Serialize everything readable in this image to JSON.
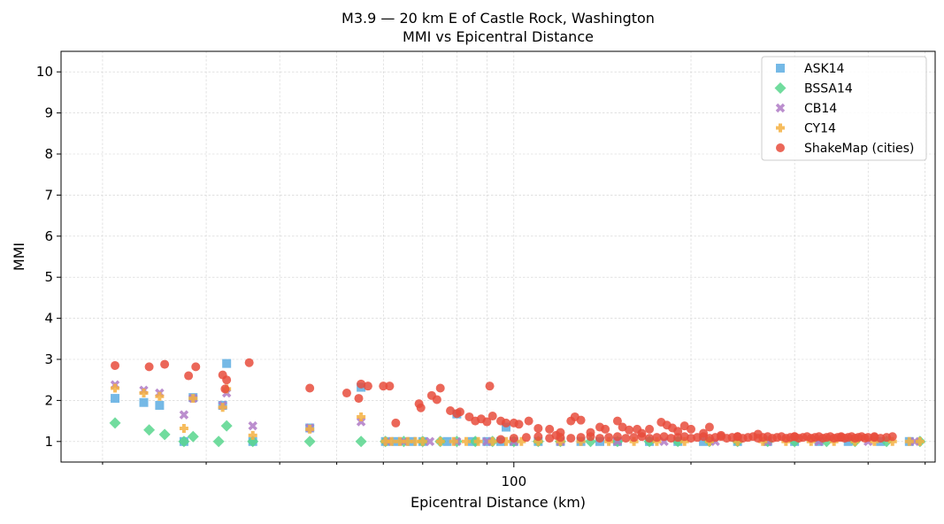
{
  "chart_data": {
    "type": "scatter",
    "title": "M3.9 — 20 km E of Castle Rock, Washington",
    "subtitle": "MMI vs Epicentral Distance",
    "xlabel": "Epicentral Distance (km)",
    "ylabel": "MMI",
    "xscale": "log",
    "xlim": [
      17,
      520
    ],
    "ylim": [
      0.5,
      10.5
    ],
    "yticks": [
      1,
      2,
      3,
      4,
      5,
      6,
      7,
      8,
      9,
      10
    ],
    "xticks_labeled": [
      100
    ],
    "xticks_minor": [
      20,
      30,
      40,
      50,
      60,
      70,
      80,
      90,
      200,
      300,
      400,
      500
    ],
    "grid": true,
    "legend_position": "top-right",
    "series": [
      {
        "name": "ASK14",
        "marker": "square",
        "color": "#5dade2",
        "points": [
          [
            21,
            2.05
          ],
          [
            23.5,
            1.95
          ],
          [
            25,
            1.88
          ],
          [
            27.5,
            1.0
          ],
          [
            28.5,
            2.07
          ],
          [
            32,
            1.88
          ],
          [
            32.5,
            2.9
          ],
          [
            36,
            1.0
          ],
          [
            45,
            1.33
          ],
          [
            55,
            2.32
          ],
          [
            60.5,
            1.0
          ],
          [
            63,
            1.0
          ],
          [
            67,
            1.0
          ],
          [
            70,
            1.0
          ],
          [
            77,
            1.0
          ],
          [
            80,
            1.67
          ],
          [
            85,
            1.0
          ],
          [
            90,
            1.0
          ],
          [
            95,
            1.0
          ],
          [
            97,
            1.35
          ],
          [
            100,
            1.0
          ],
          [
            110,
            1.0
          ],
          [
            120,
            1.0
          ],
          [
            130,
            1.0
          ],
          [
            140,
            1.0
          ],
          [
            150,
            1.0
          ],
          [
            170,
            1.0
          ],
          [
            190,
            1.0
          ],
          [
            210,
            1.0
          ],
          [
            240,
            1.0
          ],
          [
            270,
            1.0
          ],
          [
            300,
            1.0
          ],
          [
            330,
            1.0
          ],
          [
            370,
            1.0
          ],
          [
            420,
            1.0
          ],
          [
            470,
            1.0
          ]
        ]
      },
      {
        "name": "BSSA14",
        "marker": "diamond",
        "color": "#58d68d",
        "points": [
          [
            21,
            1.45
          ],
          [
            24,
            1.28
          ],
          [
            25.5,
            1.17
          ],
          [
            27.5,
            1.0
          ],
          [
            28.5,
            1.12
          ],
          [
            31.5,
            1.0
          ],
          [
            32.5,
            1.38
          ],
          [
            36,
            1.0
          ],
          [
            45,
            1.0
          ],
          [
            55,
            1.0
          ],
          [
            60.5,
            1.0
          ],
          [
            65,
            1.0
          ],
          [
            70,
            1.0
          ],
          [
            75,
            1.0
          ],
          [
            80,
            1.0
          ],
          [
            86,
            1.0
          ],
          [
            92,
            1.0
          ],
          [
            100,
            1.0
          ],
          [
            110,
            1.0
          ],
          [
            120,
            1.0
          ],
          [
            135,
            1.0
          ],
          [
            150,
            1.0
          ],
          [
            170,
            1.0
          ],
          [
            190,
            1.0
          ],
          [
            215,
            1.0
          ],
          [
            240,
            1.0
          ],
          [
            270,
            1.0
          ],
          [
            300,
            1.0
          ],
          [
            340,
            1.0
          ],
          [
            380,
            1.0
          ],
          [
            430,
            1.0
          ],
          [
            490,
            1.0
          ]
        ]
      },
      {
        "name": "CB14",
        "marker": "x",
        "color": "#af7ac5",
        "points": [
          [
            21,
            2.38
          ],
          [
            23.5,
            2.25
          ],
          [
            25,
            2.18
          ],
          [
            27.5,
            1.65
          ],
          [
            28.5,
            2.05
          ],
          [
            32,
            1.88
          ],
          [
            32.5,
            2.18
          ],
          [
            36,
            1.38
          ],
          [
            45,
            1.33
          ],
          [
            55,
            1.48
          ],
          [
            61,
            1.0
          ],
          [
            65,
            1.0
          ],
          [
            72,
            1.0
          ],
          [
            80,
            1.0
          ],
          [
            90,
            1.0
          ],
          [
            100,
            1.0
          ],
          [
            120,
            1.0
          ],
          [
            150,
            1.0
          ],
          [
            180,
            1.0
          ],
          [
            220,
            1.0
          ],
          [
            270,
            1.0
          ],
          [
            330,
            1.0
          ],
          [
            400,
            1.0
          ],
          [
            480,
            1.0
          ]
        ]
      },
      {
        "name": "CY14",
        "marker": "plus",
        "color": "#f5b041",
        "points": [
          [
            21,
            2.3
          ],
          [
            23.5,
            2.18
          ],
          [
            25,
            2.1
          ],
          [
            27.5,
            1.32
          ],
          [
            28.5,
            2.05
          ],
          [
            32,
            1.83
          ],
          [
            32.5,
            2.28
          ],
          [
            36,
            1.15
          ],
          [
            45,
            1.3
          ],
          [
            55,
            1.6
          ],
          [
            60.5,
            1.0
          ],
          [
            62,
            1.0
          ],
          [
            64,
            1.0
          ],
          [
            66,
            1.0
          ],
          [
            68,
            1.0
          ],
          [
            70,
            1.0
          ],
          [
            75,
            1.0
          ],
          [
            79,
            1.0
          ],
          [
            83,
            1.0
          ],
          [
            87,
            1.0
          ],
          [
            92,
            1.0
          ],
          [
            97,
            1.0
          ],
          [
            103,
            1.0
          ],
          [
            110,
            1.0
          ],
          [
            120,
            1.0
          ],
          [
            130,
            1.0
          ],
          [
            145,
            1.0
          ],
          [
            160,
            1.0
          ],
          [
            175,
            1.0
          ],
          [
            195,
            1.0
          ],
          [
            215,
            1.0
          ],
          [
            240,
            1.0
          ],
          [
            265,
            1.0
          ],
          [
            290,
            1.0
          ],
          [
            320,
            1.0
          ],
          [
            350,
            1.0
          ],
          [
            380,
            1.0
          ],
          [
            410,
            1.0
          ],
          [
            440,
            1.0
          ],
          [
            470,
            1.0
          ],
          [
            490,
            1.0
          ]
        ]
      },
      {
        "name": "ShakeMap (cities)",
        "marker": "circle",
        "color": "#e74c3c",
        "points": [
          [
            21,
            2.85
          ],
          [
            24,
            2.82
          ],
          [
            25.5,
            2.88
          ],
          [
            28,
            2.6
          ],
          [
            28.8,
            2.82
          ],
          [
            32,
            2.62
          ],
          [
            32.5,
            2.5
          ],
          [
            32.3,
            2.28
          ],
          [
            35.5,
            2.92
          ],
          [
            45,
            2.3
          ],
          [
            52,
            2.18
          ],
          [
            54.5,
            2.05
          ],
          [
            55,
            2.4
          ],
          [
            56.5,
            2.35
          ],
          [
            60,
            2.35
          ],
          [
            61.5,
            2.35
          ],
          [
            63,
            1.45
          ],
          [
            69,
            1.92
          ],
          [
            69.5,
            1.82
          ],
          [
            72.5,
            2.12
          ],
          [
            74,
            2.02
          ],
          [
            75,
            2.3
          ],
          [
            78,
            1.75
          ],
          [
            80,
            1.68
          ],
          [
            81,
            1.72
          ],
          [
            84,
            1.6
          ],
          [
            86,
            1.5
          ],
          [
            88,
            1.55
          ],
          [
            90,
            1.48
          ],
          [
            91,
            2.35
          ],
          [
            92,
            1.62
          ],
          [
            95,
            1.5
          ],
          [
            97,
            1.45
          ],
          [
            100,
            1.45
          ],
          [
            102,
            1.42
          ],
          [
            106,
            1.5
          ],
          [
            110,
            1.32
          ],
          [
            115,
            1.3
          ],
          [
            118,
            1.15
          ],
          [
            120,
            1.22
          ],
          [
            125,
            1.5
          ],
          [
            127,
            1.6
          ],
          [
            130,
            1.52
          ],
          [
            135,
            1.22
          ],
          [
            140,
            1.35
          ],
          [
            143,
            1.3
          ],
          [
            150,
            1.5
          ],
          [
            153,
            1.35
          ],
          [
            157,
            1.28
          ],
          [
            162,
            1.3
          ],
          [
            165,
            1.2
          ],
          [
            170,
            1.3
          ],
          [
            178,
            1.47
          ],
          [
            182,
            1.4
          ],
          [
            186,
            1.33
          ],
          [
            190,
            1.25
          ],
          [
            195,
            1.38
          ],
          [
            200,
            1.3
          ],
          [
            210,
            1.2
          ],
          [
            215,
            1.35
          ],
          [
            225,
            1.15
          ],
          [
            240,
            1.12
          ],
          [
            260,
            1.18
          ],
          [
            300,
            1.12
          ],
          [
            360,
            1.1
          ],
          [
            410,
            1.1
          ],
          [
            95,
            1.05
          ],
          [
            100,
            1.08
          ],
          [
            105,
            1.1
          ],
          [
            110,
            1.12
          ],
          [
            115,
            1.08
          ],
          [
            120,
            1.1
          ],
          [
            125,
            1.08
          ],
          [
            130,
            1.1
          ],
          [
            135,
            1.12
          ],
          [
            140,
            1.08
          ],
          [
            145,
            1.1
          ],
          [
            150,
            1.12
          ],
          [
            155,
            1.08
          ],
          [
            160,
            1.1
          ],
          [
            165,
            1.12
          ],
          [
            170,
            1.08
          ],
          [
            175,
            1.1
          ],
          [
            180,
            1.12
          ],
          [
            185,
            1.08
          ],
          [
            190,
            1.1
          ],
          [
            195,
            1.12
          ],
          [
            200,
            1.08
          ],
          [
            205,
            1.1
          ],
          [
            210,
            1.12
          ],
          [
            215,
            1.08
          ],
          [
            220,
            1.1
          ],
          [
            225,
            1.12
          ],
          [
            230,
            1.08
          ],
          [
            235,
            1.1
          ],
          [
            240,
            1.12
          ],
          [
            245,
            1.08
          ],
          [
            250,
            1.1
          ],
          [
            255,
            1.12
          ],
          [
            260,
            1.08
          ],
          [
            265,
            1.1
          ],
          [
            270,
            1.12
          ],
          [
            275,
            1.08
          ],
          [
            280,
            1.1
          ],
          [
            285,
            1.12
          ],
          [
            290,
            1.08
          ],
          [
            295,
            1.1
          ],
          [
            300,
            1.12
          ],
          [
            305,
            1.08
          ],
          [
            310,
            1.1
          ],
          [
            315,
            1.12
          ],
          [
            320,
            1.08
          ],
          [
            325,
            1.1
          ],
          [
            330,
            1.12
          ],
          [
            335,
            1.08
          ],
          [
            340,
            1.1
          ],
          [
            345,
            1.12
          ],
          [
            350,
            1.08
          ],
          [
            355,
            1.1
          ],
          [
            360,
            1.12
          ],
          [
            365,
            1.08
          ],
          [
            370,
            1.1
          ],
          [
            375,
            1.12
          ],
          [
            380,
            1.08
          ],
          [
            385,
            1.1
          ],
          [
            390,
            1.12
          ],
          [
            395,
            1.08
          ],
          [
            400,
            1.1
          ],
          [
            410,
            1.12
          ],
          [
            420,
            1.08
          ],
          [
            430,
            1.1
          ],
          [
            440,
            1.12
          ]
        ]
      }
    ]
  }
}
